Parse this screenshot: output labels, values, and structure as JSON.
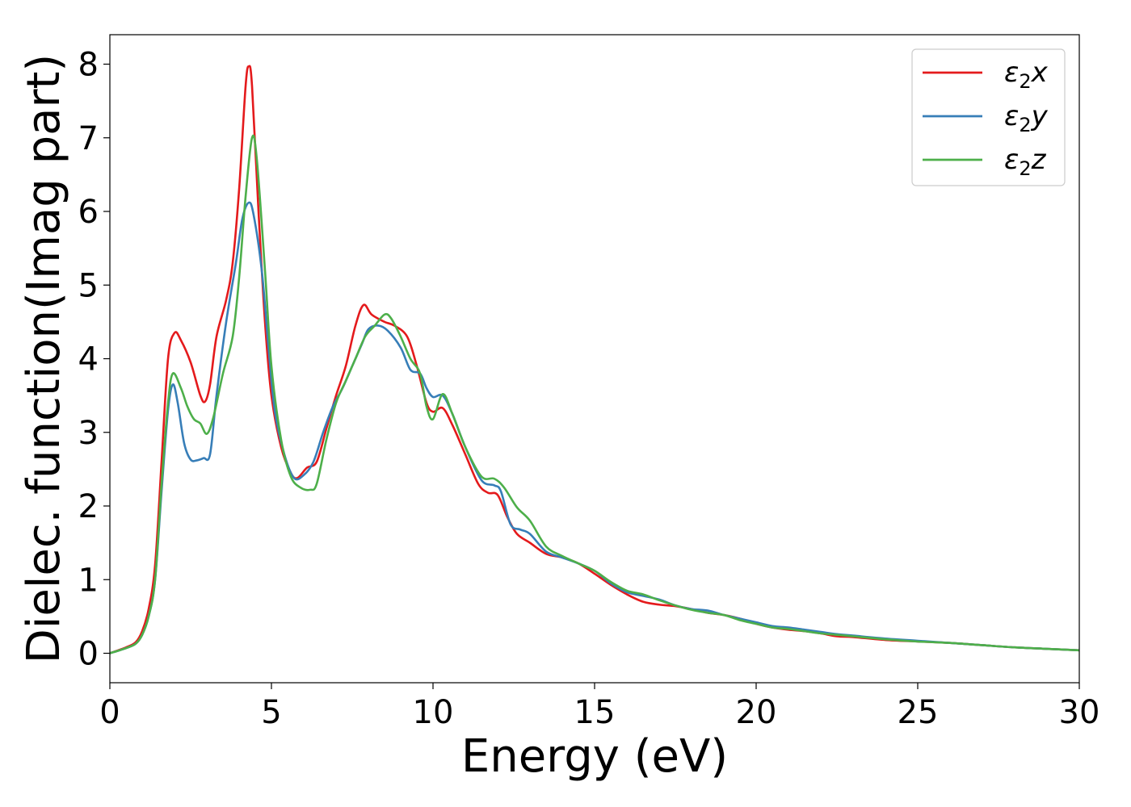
{
  "chart_data": {
    "type": "line",
    "xlabel": "Energy (eV)",
    "ylabel": "Dielec. function(Imag part)",
    "xlim": [
      0,
      30
    ],
    "ylim": [
      -0.4,
      8.4
    ],
    "x_ticks": [
      "0",
      "5",
      "10",
      "15",
      "20",
      "25",
      "30"
    ],
    "y_ticks": [
      "0",
      "1",
      "2",
      "3",
      "4",
      "5",
      "6",
      "7",
      "8"
    ],
    "grid": false,
    "legend_position": "top-right",
    "series": [
      {
        "name_base": "ε",
        "name_sub": "2",
        "name_var": "x",
        "color": "#e41a1c",
        "points": [
          [
            0,
            0
          ],
          [
            0.5,
            0.08
          ],
          [
            0.8,
            0.15
          ],
          [
            1.0,
            0.3
          ],
          [
            1.2,
            0.6
          ],
          [
            1.4,
            1.2
          ],
          [
            1.6,
            2.6
          ],
          [
            1.8,
            4.0
          ],
          [
            2.0,
            4.35
          ],
          [
            2.2,
            4.25
          ],
          [
            2.5,
            3.95
          ],
          [
            2.8,
            3.5
          ],
          [
            2.95,
            3.42
          ],
          [
            3.1,
            3.65
          ],
          [
            3.3,
            4.3
          ],
          [
            3.6,
            4.8
          ],
          [
            3.8,
            5.3
          ],
          [
            4.0,
            6.3
          ],
          [
            4.2,
            7.7
          ],
          [
            4.3,
            7.97
          ],
          [
            4.4,
            7.7
          ],
          [
            4.6,
            6.0
          ],
          [
            4.8,
            4.5
          ],
          [
            5.0,
            3.5
          ],
          [
            5.3,
            2.8
          ],
          [
            5.6,
            2.45
          ],
          [
            5.8,
            2.38
          ],
          [
            6.1,
            2.52
          ],
          [
            6.4,
            2.6
          ],
          [
            6.7,
            3.05
          ],
          [
            7.0,
            3.5
          ],
          [
            7.3,
            3.9
          ],
          [
            7.6,
            4.45
          ],
          [
            7.85,
            4.73
          ],
          [
            8.1,
            4.6
          ],
          [
            8.5,
            4.5
          ],
          [
            8.8,
            4.45
          ],
          [
            9.2,
            4.3
          ],
          [
            9.5,
            3.9
          ],
          [
            9.8,
            3.4
          ],
          [
            10.0,
            3.28
          ],
          [
            10.3,
            3.33
          ],
          [
            10.6,
            3.1
          ],
          [
            11.0,
            2.7
          ],
          [
            11.4,
            2.3
          ],
          [
            11.7,
            2.18
          ],
          [
            12.0,
            2.15
          ],
          [
            12.3,
            1.85
          ],
          [
            12.6,
            1.62
          ],
          [
            13.0,
            1.5
          ],
          [
            13.5,
            1.35
          ],
          [
            14.0,
            1.3
          ],
          [
            14.5,
            1.22
          ],
          [
            15.0,
            1.08
          ],
          [
            15.5,
            0.93
          ],
          [
            16.0,
            0.8
          ],
          [
            16.5,
            0.7
          ],
          [
            17.0,
            0.66
          ],
          [
            17.5,
            0.64
          ],
          [
            18.0,
            0.6
          ],
          [
            18.5,
            0.55
          ],
          [
            19.0,
            0.52
          ],
          [
            19.5,
            0.47
          ],
          [
            20.0,
            0.4
          ],
          [
            20.5,
            0.35
          ],
          [
            21.0,
            0.32
          ],
          [
            21.5,
            0.3
          ],
          [
            22.0,
            0.27
          ],
          [
            22.5,
            0.23
          ],
          [
            23.0,
            0.22
          ],
          [
            24.0,
            0.18
          ],
          [
            25.0,
            0.16
          ],
          [
            26.0,
            0.14
          ],
          [
            27.0,
            0.11
          ],
          [
            28.0,
            0.08
          ],
          [
            29.0,
            0.06
          ],
          [
            30.0,
            0.04
          ]
        ]
      },
      {
        "name_base": "ε",
        "name_sub": "2",
        "name_var": "y",
        "color": "#377eb8",
        "points": [
          [
            0,
            0
          ],
          [
            0.5,
            0.07
          ],
          [
            0.8,
            0.13
          ],
          [
            1.0,
            0.25
          ],
          [
            1.2,
            0.5
          ],
          [
            1.4,
            1.0
          ],
          [
            1.6,
            2.2
          ],
          [
            1.8,
            3.3
          ],
          [
            1.95,
            3.65
          ],
          [
            2.1,
            3.4
          ],
          [
            2.3,
            2.85
          ],
          [
            2.5,
            2.63
          ],
          [
            2.7,
            2.62
          ],
          [
            2.9,
            2.65
          ],
          [
            3.1,
            2.7
          ],
          [
            3.3,
            3.5
          ],
          [
            3.6,
            4.5
          ],
          [
            3.9,
            5.3
          ],
          [
            4.1,
            5.9
          ],
          [
            4.3,
            6.12
          ],
          [
            4.45,
            5.95
          ],
          [
            4.7,
            5.2
          ],
          [
            4.9,
            4.2
          ],
          [
            5.1,
            3.3
          ],
          [
            5.4,
            2.7
          ],
          [
            5.7,
            2.38
          ],
          [
            6.0,
            2.42
          ],
          [
            6.3,
            2.6
          ],
          [
            6.6,
            3.0
          ],
          [
            6.9,
            3.35
          ],
          [
            7.2,
            3.6
          ],
          [
            7.5,
            3.9
          ],
          [
            7.8,
            4.2
          ],
          [
            8.0,
            4.4
          ],
          [
            8.3,
            4.45
          ],
          [
            8.6,
            4.38
          ],
          [
            9.0,
            4.15
          ],
          [
            9.3,
            3.85
          ],
          [
            9.6,
            3.8
          ],
          [
            9.8,
            3.6
          ],
          [
            10.0,
            3.48
          ],
          [
            10.3,
            3.5
          ],
          [
            10.6,
            3.25
          ],
          [
            11.0,
            2.8
          ],
          [
            11.5,
            2.35
          ],
          [
            11.9,
            2.28
          ],
          [
            12.1,
            2.2
          ],
          [
            12.4,
            1.75
          ],
          [
            12.7,
            1.68
          ],
          [
            13.0,
            1.62
          ],
          [
            13.5,
            1.38
          ],
          [
            14.0,
            1.3
          ],
          [
            14.5,
            1.22
          ],
          [
            15.0,
            1.12
          ],
          [
            15.5,
            0.95
          ],
          [
            16.0,
            0.83
          ],
          [
            16.5,
            0.78
          ],
          [
            17.0,
            0.73
          ],
          [
            17.5,
            0.65
          ],
          [
            18.0,
            0.6
          ],
          [
            18.5,
            0.58
          ],
          [
            19.0,
            0.52
          ],
          [
            19.5,
            0.47
          ],
          [
            20.0,
            0.42
          ],
          [
            20.5,
            0.37
          ],
          [
            21.0,
            0.35
          ],
          [
            21.5,
            0.32
          ],
          [
            22.0,
            0.29
          ],
          [
            22.5,
            0.26
          ],
          [
            23.0,
            0.24
          ],
          [
            24.0,
            0.2
          ],
          [
            25.0,
            0.17
          ],
          [
            26.0,
            0.14
          ],
          [
            27.0,
            0.11
          ],
          [
            28.0,
            0.08
          ],
          [
            29.0,
            0.06
          ],
          [
            30.0,
            0.04
          ]
        ]
      },
      {
        "name_base": "ε",
        "name_sub": "2",
        "name_var": "z",
        "color": "#4daf4a",
        "points": [
          [
            0,
            0
          ],
          [
            0.5,
            0.07
          ],
          [
            0.8,
            0.13
          ],
          [
            1.0,
            0.25
          ],
          [
            1.2,
            0.5
          ],
          [
            1.4,
            1.0
          ],
          [
            1.6,
            2.3
          ],
          [
            1.8,
            3.4
          ],
          [
            1.95,
            3.8
          ],
          [
            2.2,
            3.6
          ],
          [
            2.4,
            3.35
          ],
          [
            2.6,
            3.18
          ],
          [
            2.8,
            3.12
          ],
          [
            3.0,
            2.98
          ],
          [
            3.2,
            3.2
          ],
          [
            3.5,
            3.8
          ],
          [
            3.8,
            4.3
          ],
          [
            4.0,
            5.1
          ],
          [
            4.2,
            6.2
          ],
          [
            4.4,
            7.0
          ],
          [
            4.55,
            6.7
          ],
          [
            4.8,
            5.2
          ],
          [
            5.0,
            3.9
          ],
          [
            5.3,
            2.9
          ],
          [
            5.6,
            2.4
          ],
          [
            5.9,
            2.25
          ],
          [
            6.2,
            2.22
          ],
          [
            6.4,
            2.3
          ],
          [
            6.7,
            2.9
          ],
          [
            7.0,
            3.4
          ],
          [
            7.3,
            3.7
          ],
          [
            7.6,
            4.0
          ],
          [
            7.9,
            4.3
          ],
          [
            8.2,
            4.45
          ],
          [
            8.5,
            4.6
          ],
          [
            8.7,
            4.55
          ],
          [
            9.0,
            4.3
          ],
          [
            9.3,
            4.0
          ],
          [
            9.6,
            3.8
          ],
          [
            9.8,
            3.35
          ],
          [
            10.0,
            3.18
          ],
          [
            10.3,
            3.52
          ],
          [
            10.6,
            3.25
          ],
          [
            11.0,
            2.8
          ],
          [
            11.5,
            2.4
          ],
          [
            11.9,
            2.37
          ],
          [
            12.2,
            2.25
          ],
          [
            12.6,
            1.98
          ],
          [
            13.0,
            1.8
          ],
          [
            13.5,
            1.45
          ],
          [
            14.0,
            1.32
          ],
          [
            14.5,
            1.22
          ],
          [
            15.0,
            1.12
          ],
          [
            15.5,
            0.97
          ],
          [
            16.0,
            0.85
          ],
          [
            16.5,
            0.8
          ],
          [
            17.0,
            0.72
          ],
          [
            17.5,
            0.65
          ],
          [
            18.0,
            0.59
          ],
          [
            18.5,
            0.55
          ],
          [
            19.0,
            0.52
          ],
          [
            19.5,
            0.45
          ],
          [
            20.0,
            0.4
          ],
          [
            20.5,
            0.35
          ],
          [
            21.0,
            0.33
          ],
          [
            21.5,
            0.3
          ],
          [
            22.0,
            0.27
          ],
          [
            22.5,
            0.25
          ],
          [
            23.0,
            0.23
          ],
          [
            24.0,
            0.19
          ],
          [
            25.0,
            0.16
          ],
          [
            26.0,
            0.14
          ],
          [
            27.0,
            0.11
          ],
          [
            28.0,
            0.08
          ],
          [
            29.0,
            0.06
          ],
          [
            30.0,
            0.04
          ]
        ]
      }
    ]
  }
}
